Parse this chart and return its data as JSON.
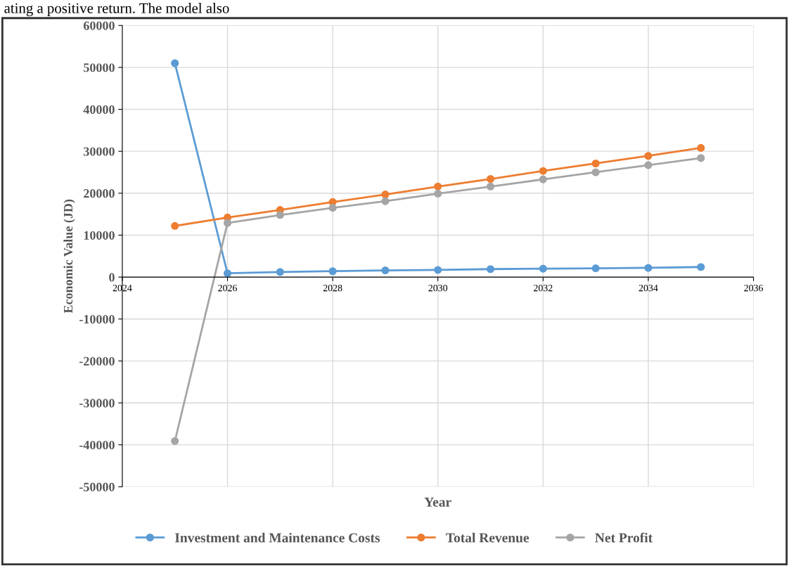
{
  "chart_data": {
    "type": "line",
    "xlabel": "Year",
    "ylabel": "Economic Value (JD)",
    "annotations": [
      "ating a positive return. The model also"
    ],
    "x": [
      2025,
      2026,
      2027,
      2028,
      2029,
      2030,
      2031,
      2032,
      2033,
      2034,
      2035
    ],
    "series": [
      {
        "name": "Investment and Maintenance Costs",
        "color": "#5b9bd5",
        "values": [
          51000,
          900,
          1200,
          1400,
          1600,
          1700,
          1900,
          2000,
          2100,
          2200,
          2400
        ]
      },
      {
        "name": "Total Revenue",
        "color": "#ed7d31",
        "values": [
          12200,
          14200,
          16000,
          17900,
          19700,
          21600,
          23400,
          25300,
          27100,
          28900,
          30800
        ]
      },
      {
        "name": "Net Profit",
        "color": "#a5a5a5",
        "values": [
          -39100,
          12900,
          14800,
          16500,
          18100,
          19900,
          21600,
          23300,
          25000,
          26700,
          28400
        ]
      }
    ],
    "xlim": [
      2024,
      2036
    ],
    "xticks": [
      2024,
      2026,
      2028,
      2030,
      2032,
      2034,
      2036
    ],
    "ylim": [
      -50000,
      60000
    ],
    "yticks": [
      -50000,
      -40000,
      -30000,
      -20000,
      -10000,
      0,
      10000,
      20000,
      30000,
      40000,
      50000,
      60000
    ],
    "grid": true,
    "legend": "bottom",
    "marker": "circle",
    "line_style": "solid"
  }
}
